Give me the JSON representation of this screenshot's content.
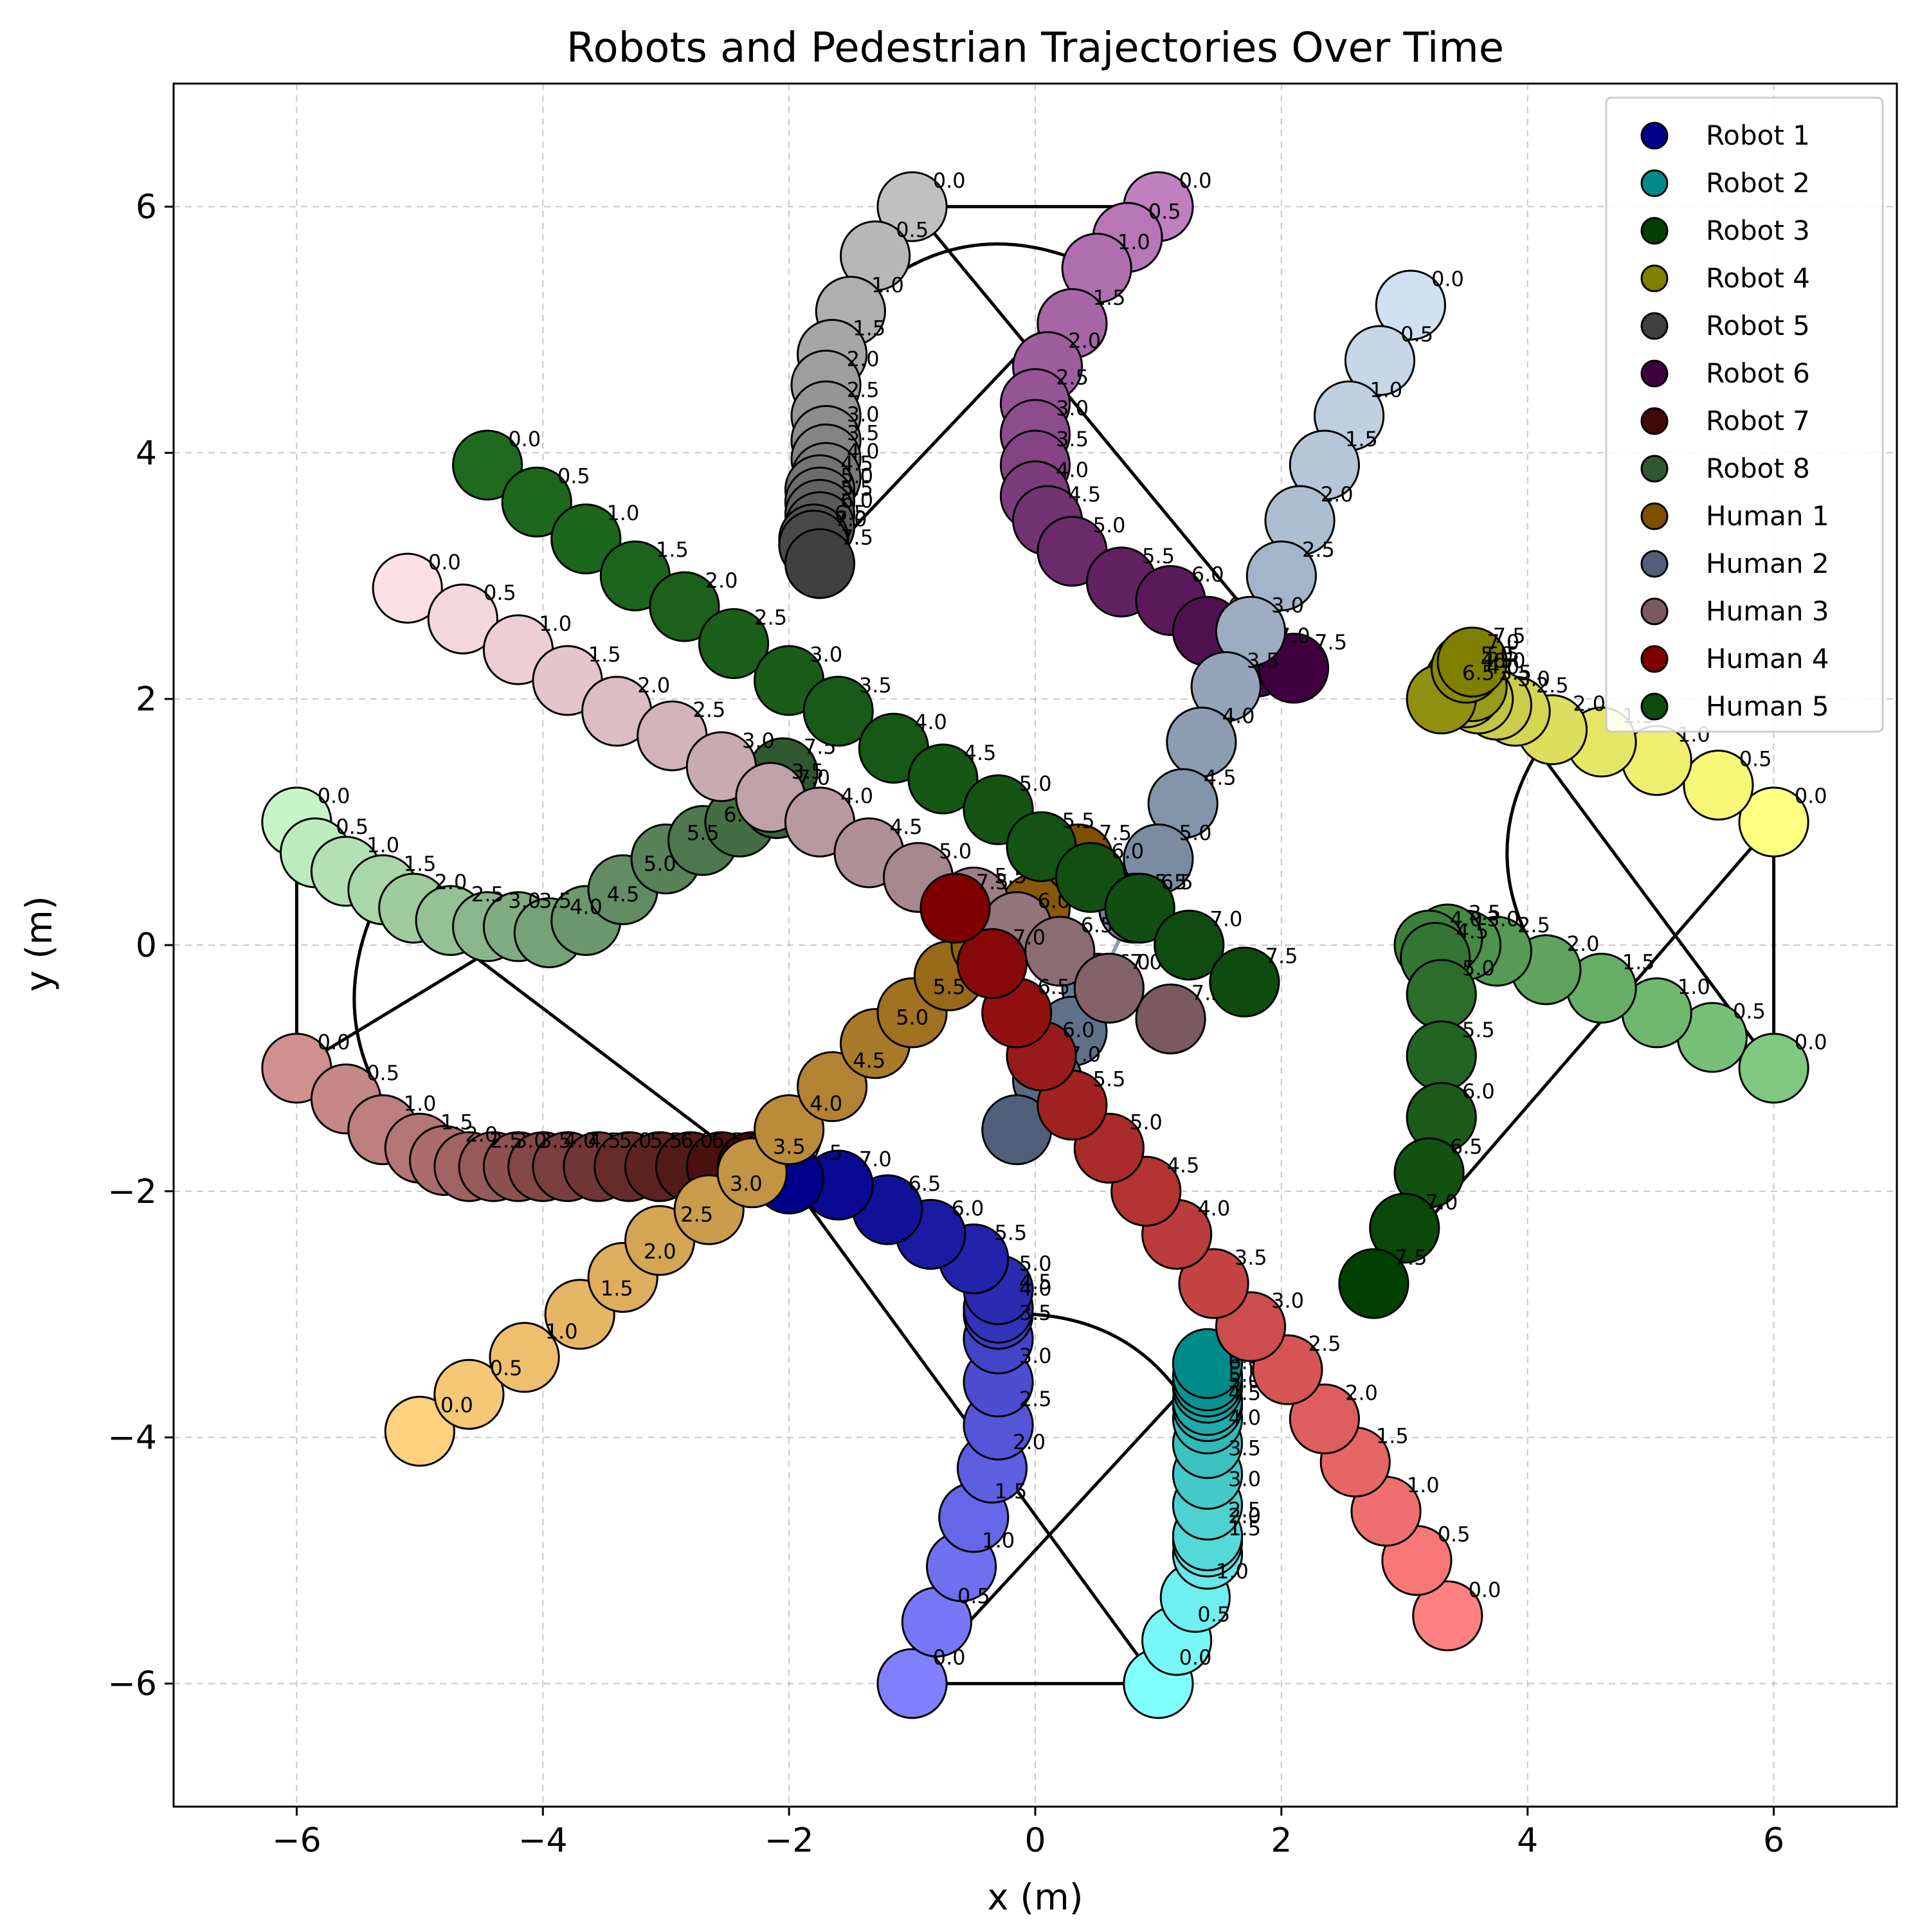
{
  "chart_data": {
    "type": "scatter",
    "title": "Robots and Pedestrian Trajectories Over Time",
    "xlabel": "x (m)",
    "ylabel": "y (m)",
    "xlim": [
      -7,
      7
    ],
    "ylim": [
      -7,
      7
    ],
    "xticks": [
      -6,
      -4,
      -2,
      0,
      2,
      4,
      6
    ],
    "yticks": [
      -6,
      -4,
      -2,
      0,
      2,
      4,
      6
    ],
    "xtick_labels": [
      "−6",
      "−4",
      "−2",
      "0",
      "2",
      "4",
      "6"
    ],
    "ytick_labels": [
      "−6",
      "−4",
      "−2",
      "0",
      "2",
      "4",
      "6"
    ],
    "grid": true,
    "legend_position": "top-right",
    "times": [
      0.0,
      0.5,
      1.0,
      1.5,
      2.0,
      2.5,
      3.0,
      3.5,
      4.0,
      4.5,
      5.0,
      5.5,
      6.0,
      6.5,
      7.0,
      7.5
    ],
    "time_labels": [
      "0.0",
      "0.5",
      "1.0",
      "1.5",
      "2.0",
      "2.5",
      "3.0",
      "3.5",
      "4.0",
      "4.5",
      "5.0",
      "5.5",
      "6.0",
      "6.5",
      "7.0",
      "7.5"
    ],
    "series": [
      {
        "name": "Robot 1",
        "color": "#00008b",
        "color_start": "#8080ff",
        "goal": [
          -1.0,
          -6.0
        ],
        "points": [
          [
            -1.0,
            -6.0
          ],
          [
            -0.8,
            -5.5
          ],
          [
            -0.6,
            -5.05
          ],
          [
            -0.5,
            -4.65
          ],
          [
            -0.35,
            -4.25
          ],
          [
            -0.3,
            -3.9
          ],
          [
            -0.3,
            -3.55
          ],
          [
            -0.3,
            -3.2
          ],
          [
            -0.3,
            -3.0
          ],
          [
            -0.3,
            -2.95
          ],
          [
            -0.3,
            -2.8
          ],
          [
            -0.5,
            -2.55
          ],
          [
            -0.85,
            -2.35
          ],
          [
            -1.2,
            -2.15
          ],
          [
            -1.6,
            -1.95
          ],
          [
            -2.0,
            -1.9
          ]
        ]
      },
      {
        "name": "Robot 2",
        "color": "#008b8b",
        "color_start": "#80ffff",
        "goal": [
          1.0,
          -6.0
        ],
        "points": [
          [
            1.0,
            -6.0
          ],
          [
            1.15,
            -5.65
          ],
          [
            1.3,
            -5.3
          ],
          [
            1.4,
            -4.95
          ],
          [
            1.4,
            -4.85
          ],
          [
            1.4,
            -4.8
          ],
          [
            1.4,
            -4.55
          ],
          [
            1.4,
            -4.3
          ],
          [
            1.4,
            -4.05
          ],
          [
            1.4,
            -3.85
          ],
          [
            1.4,
            -3.75
          ],
          [
            1.4,
            -3.7
          ],
          [
            1.4,
            -3.6
          ],
          [
            1.4,
            -3.55
          ],
          [
            1.4,
            -3.5
          ],
          [
            1.4,
            -3.4
          ]
        ]
      },
      {
        "name": "Robot 3",
        "color": "#004000",
        "color_start": "#80c880",
        "goal": [
          6.0,
          -1.0
        ],
        "points": [
          [
            6.0,
            -1.0
          ],
          [
            5.5,
            -0.75
          ],
          [
            5.05,
            -0.55
          ],
          [
            4.6,
            -0.35
          ],
          [
            4.15,
            -0.2
          ],
          [
            3.75,
            -0.05
          ],
          [
            3.5,
            0.0
          ],
          [
            3.35,
            0.05
          ],
          [
            3.2,
            0.0
          ],
          [
            3.25,
            -0.1
          ],
          [
            3.3,
            -0.4
          ],
          [
            3.3,
            -0.9
          ],
          [
            3.3,
            -1.4
          ],
          [
            3.2,
            -1.85
          ],
          [
            3.0,
            -2.3
          ],
          [
            2.75,
            -2.75
          ]
        ]
      },
      {
        "name": "Robot 4",
        "color": "#808000",
        "color_start": "#ffff80",
        "goal": [
          6.0,
          1.0
        ],
        "points": [
          [
            6.0,
            1.0
          ],
          [
            5.55,
            1.3
          ],
          [
            5.05,
            1.5
          ],
          [
            4.6,
            1.65
          ],
          [
            4.2,
            1.75
          ],
          [
            3.9,
            1.9
          ],
          [
            3.75,
            1.95
          ],
          [
            3.6,
            2.0
          ],
          [
            3.5,
            2.05
          ],
          [
            3.45,
            2.1
          ],
          [
            3.45,
            2.15
          ],
          [
            3.5,
            2.15
          ],
          [
            3.55,
            2.1
          ],
          [
            3.3,
            2.0
          ],
          [
            3.5,
            2.25
          ],
          [
            3.55,
            2.3
          ]
        ]
      },
      {
        "name": "Robot 5",
        "color": "#404040",
        "color_start": "#c0c0c0",
        "goal": [
          -1.0,
          6.0
        ],
        "points": [
          [
            -1.0,
            6.0
          ],
          [
            -1.3,
            5.6
          ],
          [
            -1.5,
            5.15
          ],
          [
            -1.65,
            4.8
          ],
          [
            -1.7,
            4.55
          ],
          [
            -1.7,
            4.3
          ],
          [
            -1.7,
            4.1
          ],
          [
            -1.7,
            3.95
          ],
          [
            -1.7,
            3.8
          ],
          [
            -1.75,
            3.7
          ],
          [
            -1.75,
            3.6
          ],
          [
            -1.75,
            3.5
          ],
          [
            -1.75,
            3.4
          ],
          [
            -1.8,
            3.3
          ],
          [
            -1.8,
            3.25
          ],
          [
            -1.75,
            3.1
          ]
        ]
      },
      {
        "name": "Robot 6",
        "color": "#400040",
        "color_start": "#c080c0",
        "goal": [
          1.0,
          6.0
        ],
        "points": [
          [
            1.0,
            6.0
          ],
          [
            0.75,
            5.75
          ],
          [
            0.5,
            5.5
          ],
          [
            0.3,
            5.05
          ],
          [
            0.1,
            4.7
          ],
          [
            0.0,
            4.4
          ],
          [
            0.0,
            4.15
          ],
          [
            0.0,
            3.9
          ],
          [
            0.0,
            3.65
          ],
          [
            0.1,
            3.45
          ],
          [
            0.3,
            3.2
          ],
          [
            0.7,
            2.95
          ],
          [
            1.1,
            2.8
          ],
          [
            1.4,
            2.55
          ],
          [
            1.8,
            2.3
          ],
          [
            2.1,
            2.25
          ]
        ]
      },
      {
        "name": "Robot 7",
        "color": "#400808",
        "color_start": "#d09090",
        "goal": [
          -6.0,
          -1.0
        ],
        "points": [
          [
            -6.0,
            -1.0
          ],
          [
            -5.6,
            -1.25
          ],
          [
            -5.3,
            -1.5
          ],
          [
            -5.0,
            -1.65
          ],
          [
            -4.8,
            -1.75
          ],
          [
            -4.6,
            -1.8
          ],
          [
            -4.4,
            -1.8
          ],
          [
            -4.2,
            -1.8
          ],
          [
            -4.0,
            -1.8
          ],
          [
            -3.8,
            -1.8
          ],
          [
            -3.55,
            -1.8
          ],
          [
            -3.3,
            -1.8
          ],
          [
            -3.05,
            -1.8
          ],
          [
            -2.8,
            -1.8
          ],
          [
            -2.55,
            -1.8
          ],
          [
            -2.3,
            -1.8
          ]
        ]
      },
      {
        "name": "Robot 8",
        "color": "#305830",
        "color_start": "#c8f5c8",
        "goal": [
          -6.0,
          1.0
        ],
        "points": [
          [
            -6.0,
            1.0
          ],
          [
            -5.85,
            0.75
          ],
          [
            -5.6,
            0.6
          ],
          [
            -5.3,
            0.45
          ],
          [
            -5.05,
            0.3
          ],
          [
            -4.75,
            0.2
          ],
          [
            -4.45,
            0.15
          ],
          [
            -4.2,
            0.15
          ],
          [
            -3.95,
            0.1
          ],
          [
            -3.65,
            0.2
          ],
          [
            -3.35,
            0.45
          ],
          [
            -3.0,
            0.7
          ],
          [
            -2.7,
            0.85
          ],
          [
            -2.4,
            1.0
          ],
          [
            -2.1,
            1.15
          ],
          [
            -2.05,
            1.4
          ]
        ]
      },
      {
        "name": "Human 1",
        "color": "#7f4f00",
        "color_start": "#ffd080",
        "goal": null,
        "points": [
          [
            -5.0,
            -3.95
          ],
          [
            -4.6,
            -3.65
          ],
          [
            -4.15,
            -3.35
          ],
          [
            -3.7,
            -3.0
          ],
          [
            -3.35,
            -2.7
          ],
          [
            -3.05,
            -2.4
          ],
          [
            -2.65,
            -2.15
          ],
          [
            -2.3,
            -1.85
          ],
          [
            -2.0,
            -1.5
          ],
          [
            -1.65,
            -1.15
          ],
          [
            -1.3,
            -0.8
          ],
          [
            -1.0,
            -0.55
          ],
          [
            -0.7,
            -0.25
          ],
          [
            -0.4,
            0.0
          ],
          [
            0.0,
            0.3
          ],
          [
            0.35,
            0.7
          ]
        ]
      },
      {
        "name": "Human 2",
        "color": "#50607a",
        "color_start": "#d0e0f0",
        "goal": null,
        "points": [
          [
            3.05,
            5.2
          ],
          [
            2.8,
            4.75
          ],
          [
            2.55,
            4.3
          ],
          [
            2.35,
            3.9
          ],
          [
            2.15,
            3.45
          ],
          [
            2.0,
            3.0
          ],
          [
            1.75,
            2.55
          ],
          [
            1.55,
            2.1
          ],
          [
            1.35,
            1.65
          ],
          [
            1.2,
            1.15
          ],
          [
            1.0,
            0.7
          ],
          [
            0.8,
            0.3
          ],
          [
            0.5,
            -0.35
          ],
          [
            0.3,
            -0.7
          ],
          [
            0.1,
            -1.1
          ],
          [
            -0.15,
            -1.5
          ]
        ]
      },
      {
        "name": "Human 3",
        "color": "#7a5a60",
        "color_start": "#fde0e6",
        "goal": null,
        "points": [
          [
            -5.1,
            2.9
          ],
          [
            -4.65,
            2.65
          ],
          [
            -4.2,
            2.4
          ],
          [
            -3.8,
            2.15
          ],
          [
            -3.4,
            1.9
          ],
          [
            -2.95,
            1.7
          ],
          [
            -2.55,
            1.45
          ],
          [
            -2.15,
            1.2
          ],
          [
            -1.75,
            1.0
          ],
          [
            -1.35,
            0.75
          ],
          [
            -0.95,
            0.55
          ],
          [
            -0.5,
            0.35
          ],
          [
            -0.15,
            0.15
          ],
          [
            0.2,
            -0.05
          ],
          [
            0.6,
            -0.35
          ],
          [
            1.1,
            -0.6
          ]
        ]
      },
      {
        "name": "Human 4",
        "color": "#800000",
        "color_start": "#ff8080",
        "goal": null,
        "points": [
          [
            3.35,
            -5.45
          ],
          [
            3.1,
            -5.0
          ],
          [
            2.85,
            -4.6
          ],
          [
            2.6,
            -4.2
          ],
          [
            2.35,
            -3.85
          ],
          [
            2.05,
            -3.45
          ],
          [
            1.75,
            -3.1
          ],
          [
            1.45,
            -2.75
          ],
          [
            1.15,
            -2.35
          ],
          [
            0.9,
            -2.0
          ],
          [
            0.6,
            -1.65
          ],
          [
            0.3,
            -1.3
          ],
          [
            0.05,
            -0.9
          ],
          [
            -0.15,
            -0.55
          ],
          [
            -0.35,
            -0.15
          ],
          [
            -0.65,
            0.3
          ]
        ]
      },
      {
        "name": "Human 5",
        "color": "#0f4a0f",
        "color_start": "#1f6a1f",
        "goal": null,
        "points": [
          [
            -4.45,
            3.9
          ],
          [
            -4.05,
            3.6
          ],
          [
            -3.65,
            3.3
          ],
          [
            -3.25,
            3.0
          ],
          [
            -2.85,
            2.75
          ],
          [
            -2.45,
            2.45
          ],
          [
            -2.0,
            2.15
          ],
          [
            -1.6,
            1.9
          ],
          [
            -1.15,
            1.6
          ],
          [
            -0.75,
            1.35
          ],
          [
            -0.3,
            1.1
          ],
          [
            0.05,
            0.8
          ],
          [
            0.45,
            0.55
          ],
          [
            0.85,
            0.3
          ],
          [
            1.25,
            0.0
          ],
          [
            1.7,
            -0.3
          ]
        ]
      }
    ],
    "connector_pairs": [
      [
        1,
        2
      ],
      [
        2,
        1
      ],
      [
        3,
        4
      ],
      [
        4,
        3
      ],
      [
        5,
        6
      ],
      [
        6,
        5
      ],
      [
        7,
        8
      ],
      [
        8,
        7
      ]
    ]
  }
}
